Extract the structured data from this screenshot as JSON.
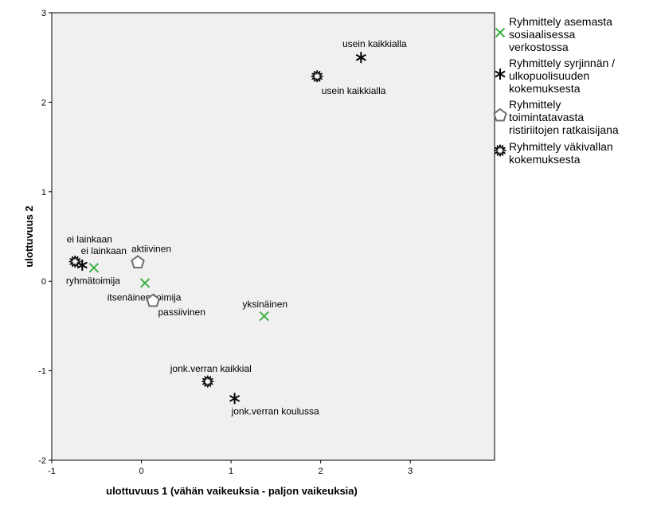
{
  "chart_data": {
    "type": "scatter",
    "xlabel": "ulottuvuus 1 (vähän vaikeuksia - paljon vaikeuksia)",
    "ylabel": "ulottuvuus 2",
    "xlim": [
      -1,
      3.94
    ],
    "ylim": [
      -2,
      3
    ],
    "x_ticks": [
      "-1",
      "0",
      "1",
      "2",
      "3"
    ],
    "y_ticks": [
      "-2",
      "-1",
      "0",
      "1",
      "2",
      "3"
    ],
    "legend_position": "right",
    "series": [
      {
        "name": "Ryhmittely asemasta sosiaalisessa verkostossa",
        "legend_lines": [
          "Ryhmittely asemasta",
          "sosiaalisessa",
          "verkostossa"
        ],
        "marker": "x",
        "color": "#3cb043",
        "points": [
          {
            "x": -0.53,
            "y": 0.15,
            "label": "ryhmätoimija"
          },
          {
            "x": 0.04,
            "y": -0.02,
            "label": "itsenäinen toimija"
          },
          {
            "x": 1.37,
            "y": -0.39,
            "label": "yksinäinen"
          }
        ]
      },
      {
        "name": "Ryhmittely syrjinnän / ulkopuolisuuden kokemuksesta",
        "legend_lines": [
          "Ryhmittely syrjinnän /",
          "ulkopuolisuuden",
          "kokemuksesta"
        ],
        "marker": "asterisk",
        "color": "#000000",
        "points": [
          {
            "x": 2.45,
            "y": 2.5,
            "label": "usein kaikkialla"
          },
          {
            "x": -0.66,
            "y": 0.18,
            "label": "ei lainkaan"
          },
          {
            "x": 1.04,
            "y": -1.31,
            "label": "jonk.verran koulussa"
          }
        ]
      },
      {
        "name": "Ryhmittely toimintatavasta ristiriitojen ratkaisijana",
        "legend_lines": [
          "Ryhmittely",
          "toimintatavasta",
          "ristiriitojen ratkaisijana"
        ],
        "marker": "pentagon",
        "color": "#6e6e6e",
        "points": [
          {
            "x": -0.04,
            "y": 0.21,
            "label": "aktiivinen"
          },
          {
            "x": 0.13,
            "y": -0.22,
            "label": "passiivinen"
          }
        ]
      },
      {
        "name": "Ryhmittely väkivallan kokemuksesta",
        "legend_lines": [
          "Ryhmittely väkivallan",
          "kokemuksesta"
        ],
        "marker": "starburst",
        "color": "#000000",
        "points": [
          {
            "x": 1.96,
            "y": 2.29,
            "label": "usein kaikkialla"
          },
          {
            "x": -0.74,
            "y": 0.22,
            "label": "ei lainkaan"
          },
          {
            "x": 0.74,
            "y": -1.12,
            "label": "jonk.verran kaikkial"
          }
        ]
      }
    ]
  }
}
